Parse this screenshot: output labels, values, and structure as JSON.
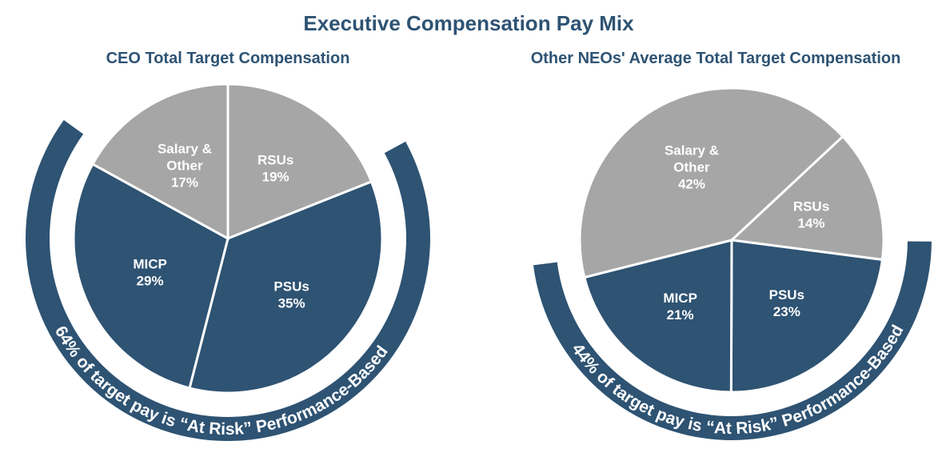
{
  "title": "Executive Compensation Pay Mix",
  "chart_data": [
    {
      "type": "pie",
      "title": "CEO Total Target Compensation",
      "categories": [
        "RSUs",
        "PSUs",
        "MICP",
        "Salary & Other"
      ],
      "values": [
        19,
        35,
        29,
        17
      ],
      "value_labels": [
        "19%",
        "35%",
        "29%",
        "17%"
      ],
      "colors": [
        "#a6a6a6",
        "#2e5373",
        "#2e5373",
        "#a6a6a6"
      ],
      "annotation": "64% of target pay is “At Risk” Performance-Based",
      "annotation_color": "#2e5373"
    },
    {
      "type": "pie",
      "title": "Other NEOs' Average Total Target Compensation",
      "categories": [
        "RSUs",
        "PSUs",
        "MICP",
        "Salary & Other"
      ],
      "values": [
        14,
        23,
        21,
        42
      ],
      "value_labels": [
        "14%",
        "23%",
        "21%",
        "42%"
      ],
      "colors": [
        "#a6a6a6",
        "#2e5373",
        "#2e5373",
        "#a6a6a6"
      ],
      "annotation": "44% of target pay is “At Risk” Performance-Based",
      "annotation_color": "#2e5373"
    }
  ]
}
